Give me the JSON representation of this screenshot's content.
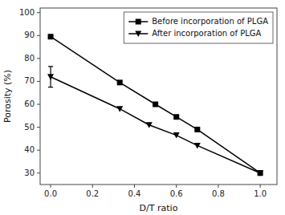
{
  "chart_data": {
    "type": "line",
    "xlabel": "D/T ratio",
    "ylabel": "Porosity (%)",
    "xlim": [
      -0.05,
      1.08
    ],
    "ylim": [
      25,
      102
    ],
    "xticks": [
      {
        "value": 0.0,
        "label": "0.0"
      },
      0.2,
      0.4,
      0.6,
      0.8,
      {
        "value": 1.0,
        "label": "1.0"
      }
    ],
    "yticks": [
      30,
      40,
      50,
      60,
      70,
      80,
      90,
      100
    ],
    "grid": false,
    "legend": "upper-right",
    "series": [
      {
        "name": "Before incorporation of PLGA",
        "color": "#000000",
        "marker": "square",
        "line_style": "solid",
        "x": [
          0.0,
          0.33,
          0.5,
          0.6,
          0.7,
          1.0
        ],
        "values": [
          89.5,
          69.5,
          60.0,
          54.5,
          49.0,
          30.0
        ]
      },
      {
        "name": "After incorporation of PLGA",
        "color": "#000000",
        "marker": "triangle-down",
        "line_style": "solid",
        "x": [
          0.0,
          0.33,
          0.47,
          0.6,
          0.7,
          1.0
        ],
        "values": [
          72.0,
          58.0,
          51.0,
          46.5,
          42.0,
          30.0
        ],
        "error_lo": [
          4.5,
          null,
          null,
          null,
          null,
          null
        ],
        "error_hi": [
          4.5,
          null,
          null,
          null,
          null,
          null
        ]
      }
    ]
  }
}
